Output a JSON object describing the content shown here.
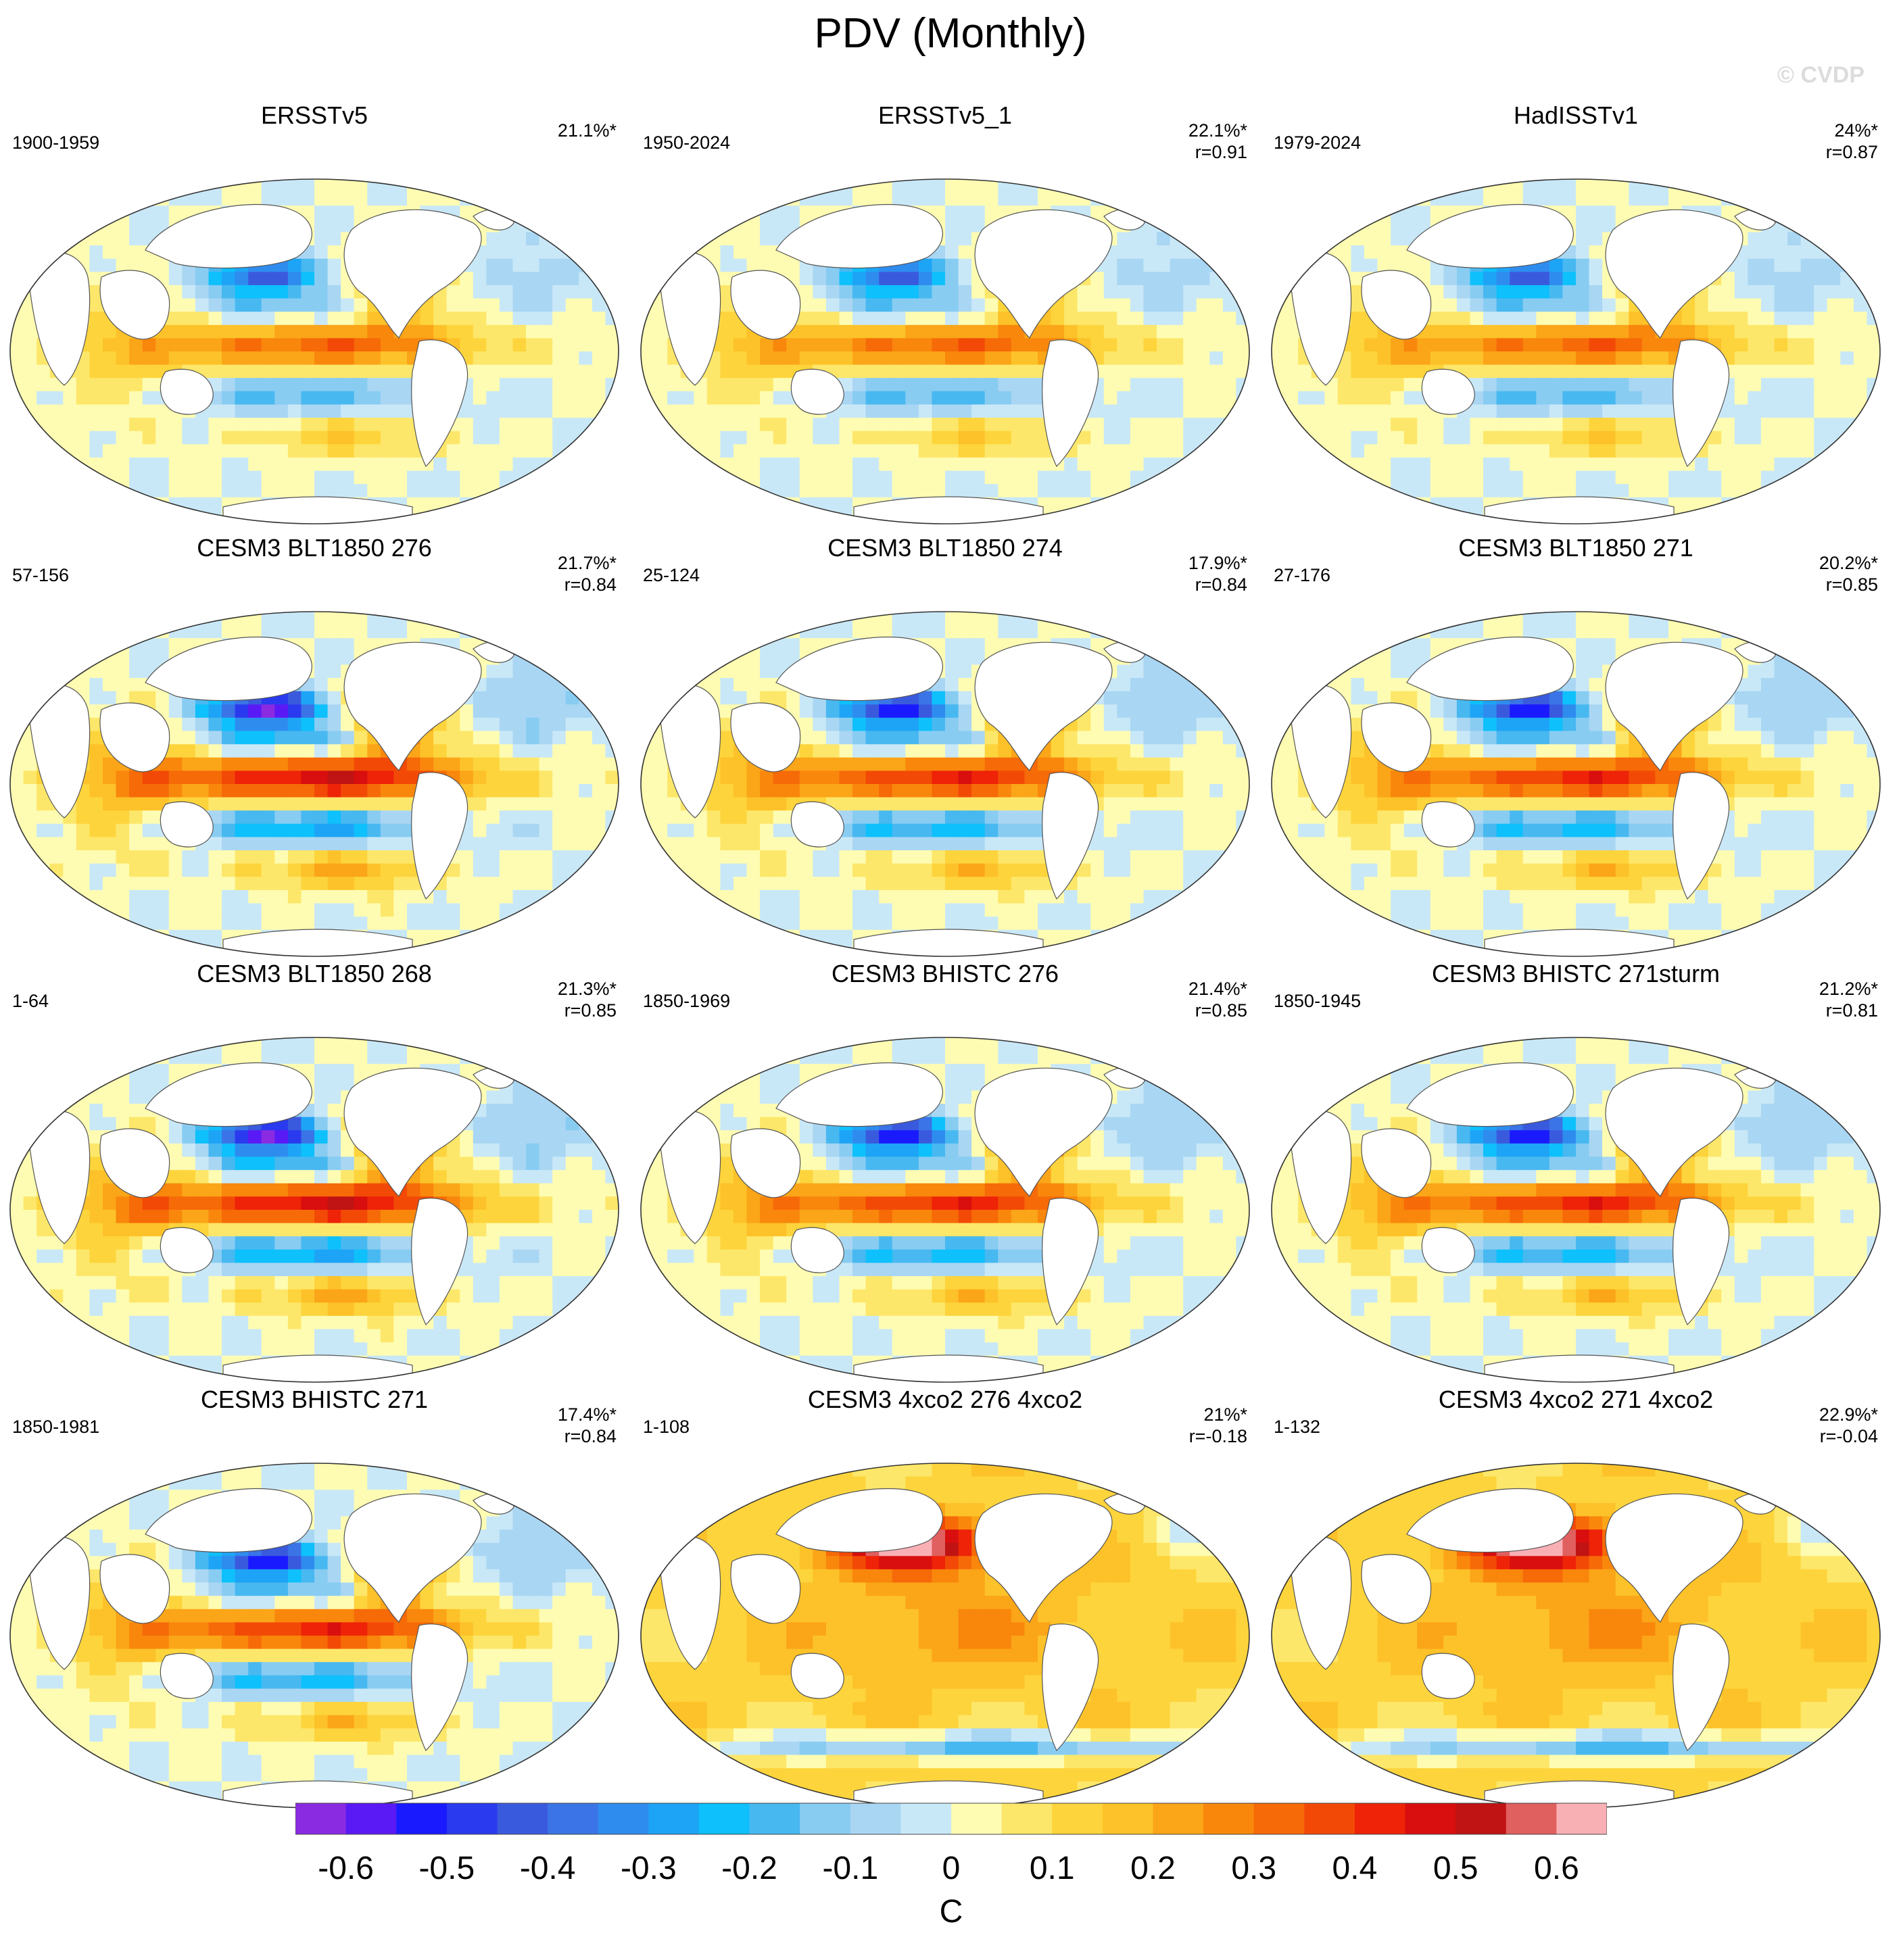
{
  "title": "PDV (Monthly)",
  "watermark": "© CVDP",
  "chart_data": {
    "type": "heatmap",
    "title": "PDV (Monthly)",
    "units": "C",
    "panel_layout": "4 rows x 3 columns of global SST regression maps",
    "panels": [
      {
        "name": "ERSSTv5",
        "years": "1900-1959",
        "variance": "21.1%*",
        "r": "",
        "pattern": "obs"
      },
      {
        "name": "ERSSTv5_1",
        "years": "1950-2024",
        "variance": "22.1%*",
        "r": "r=0.91",
        "pattern": "obs"
      },
      {
        "name": "HadISSTv1",
        "years": "1979-2024",
        "variance": "24%*",
        "r": "r=0.87",
        "pattern": "obs"
      },
      {
        "name": "CESM3 BLT1850 276",
        "years": "57-156",
        "variance": "21.7%*",
        "r": "r=0.84",
        "pattern": "model_strong"
      },
      {
        "name": "CESM3 BLT1850 274",
        "years": "25-124",
        "variance": "17.9%*",
        "r": "r=0.84",
        "pattern": "model"
      },
      {
        "name": "CESM3 BLT1850 271",
        "years": "27-176",
        "variance": "20.2%*",
        "r": "r=0.85",
        "pattern": "model"
      },
      {
        "name": "CESM3 BLT1850 268",
        "years": "1-64",
        "variance": "21.3%*",
        "r": "r=0.85",
        "pattern": "model_strong"
      },
      {
        "name": "CESM3 BHISTC 276",
        "years": "1850-1969",
        "variance": "21.4%*",
        "r": "r=0.85",
        "pattern": "model"
      },
      {
        "name": "CESM3 BHISTC 271sturm",
        "years": "1850-1945",
        "variance": "21.2%*",
        "r": "r=0.81",
        "pattern": "model"
      },
      {
        "name": "CESM3 BHISTC 271",
        "years": "1850-1981",
        "variance": "17.4%*",
        "r": "r=0.84",
        "pattern": "model"
      },
      {
        "name": "CESM3 4xco2 276 4xco2",
        "years": "1-108",
        "variance": "21%*",
        "r": "r=-0.18",
        "pattern": "warm"
      },
      {
        "name": "CESM3 4xco2 271 4xco2",
        "years": "1-132",
        "variance": "22.9%*",
        "r": "r=-0.04",
        "pattern": "warm"
      }
    ],
    "colorbar": {
      "label": "C",
      "levels": [
        -0.65,
        -0.6,
        -0.55,
        -0.5,
        -0.45,
        -0.4,
        -0.35,
        -0.3,
        -0.25,
        -0.2,
        -0.15,
        -0.1,
        -0.05,
        0,
        0.05,
        0.1,
        0.15,
        0.2,
        0.25,
        0.3,
        0.35,
        0.4,
        0.45,
        0.5,
        0.55,
        0.6,
        0.65
      ],
      "tick_labels": [
        "-0.6",
        "-0.5",
        "-0.4",
        "-0.3",
        "-0.2",
        "-0.1",
        "0",
        "0.1",
        "0.2",
        "0.3",
        "0.4",
        "0.5",
        "0.6"
      ],
      "colors": [
        "#8a2be2",
        "#5a1af5",
        "#1a1aff",
        "#2a3aee",
        "#3a5ade",
        "#3a74e6",
        "#2f8cef",
        "#1ea4f6",
        "#0ec0fb",
        "#48b8f0",
        "#88ccf2",
        "#a9d6f3",
        "#c9e8f7",
        "#fefcb2",
        "#fde76a",
        "#fdd43c",
        "#fdc229",
        "#fba518",
        "#f9870c",
        "#f66a08",
        "#f24a06",
        "#ee2308",
        "#d90e0e",
        "#c01313",
        "#e05f5f",
        "#f9b0b5"
      ]
    }
  }
}
